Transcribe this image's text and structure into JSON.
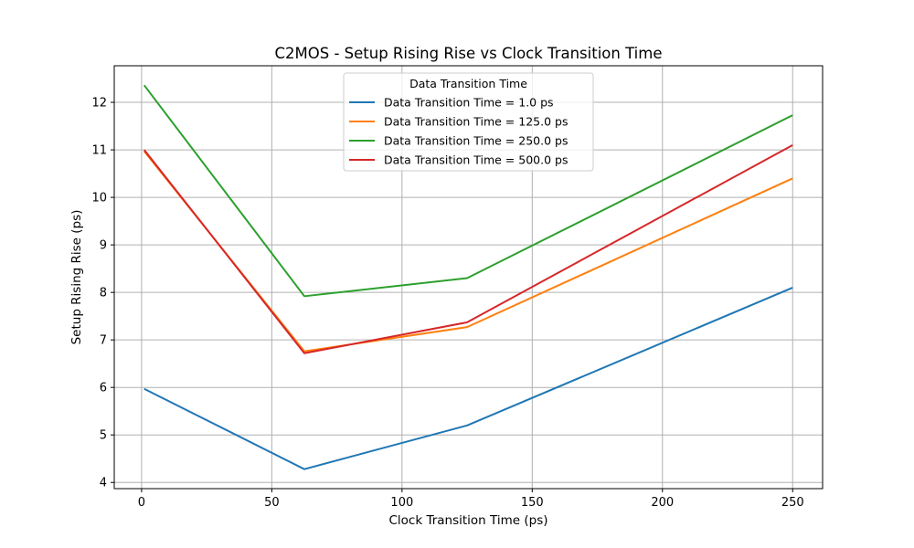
{
  "chart_data": {
    "type": "line",
    "title": "C2MOS - Setup Rising Rise vs Clock Transition Time",
    "xlabel": "Clock Transition Time (ps)",
    "ylabel": "Setup Rising Rise (ps)",
    "xlim": [
      -10.5,
      261.5
    ],
    "ylim": [
      3.87,
      12.77
    ],
    "xticks": [
      0,
      50,
      100,
      150,
      200,
      250
    ],
    "yticks": [
      4,
      5,
      6,
      7,
      8,
      9,
      10,
      11,
      12
    ],
    "grid": true,
    "legend_title": "Data Transition Time",
    "legend_position": "top-center",
    "x": [
      1.0,
      62.5,
      125.0,
      250.0
    ],
    "series": [
      {
        "name": "Data Transition Time = 1.0 ps",
        "color": "#1f77b4",
        "values": [
          5.97,
          4.28,
          5.2,
          8.1
        ]
      },
      {
        "name": "Data Transition Time = 125.0 ps",
        "color": "#ff7f0e",
        "values": [
          10.97,
          6.76,
          7.27,
          10.4
        ]
      },
      {
        "name": "Data Transition Time = 250.0 ps",
        "color": "#2ca02c",
        "values": [
          12.36,
          7.92,
          8.3,
          11.73
        ]
      },
      {
        "name": "Data Transition Time = 500.0 ps",
        "color": "#d62728",
        "values": [
          11.0,
          6.72,
          7.37,
          11.1
        ]
      }
    ]
  }
}
